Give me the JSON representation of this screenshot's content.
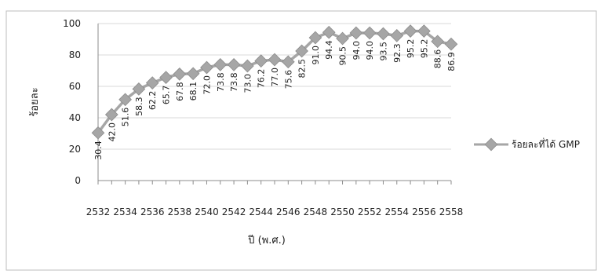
{
  "chart_data": {
    "type": "line",
    "title": "",
    "xlabel": "ปี (พ.ศ.)",
    "ylabel": "ร้อยละ",
    "x": [
      2532,
      2533,
      2534,
      2535,
      2536,
      2537,
      2538,
      2539,
      2540,
      2541,
      2542,
      2543,
      2544,
      2545,
      2546,
      2547,
      2548,
      2549,
      2550,
      2551,
      2552,
      2553,
      2554,
      2555,
      2556,
      2557,
      2558
    ],
    "x_tick_labels": [
      "2532",
      "2534",
      "2536",
      "2538",
      "2540",
      "2542",
      "2544",
      "2546",
      "2548",
      "2550",
      "2552",
      "2554",
      "2556",
      "2558"
    ],
    "y_ticks": [
      0,
      20,
      40,
      60,
      80,
      100
    ],
    "ylim": [
      0,
      100
    ],
    "grid": true,
    "legend_position": "right",
    "series": [
      {
        "name": "ร้อยละที่ได้ GMP",
        "color": "#a6a6a6",
        "values": [
          30.4,
          42.0,
          51.6,
          58.3,
          62.2,
          65.7,
          67.8,
          68.1,
          72.0,
          73.8,
          73.8,
          73.0,
          76.2,
          77.0,
          75.6,
          82.5,
          91.0,
          94.4,
          90.5,
          94.0,
          94.0,
          93.5,
          92.3,
          95.2,
          95.2,
          88.6,
          86.9
        ],
        "labels": [
          "30.4",
          "42.0",
          "51.6",
          "58.3",
          "62.2",
          "65.7",
          "67.8",
          "68.1",
          "72.0",
          "73.8",
          "73.8",
          "73.0",
          "76.2",
          "77.0",
          "75.6",
          "82.5",
          "91.0",
          "94.4",
          "90.5",
          "94.0",
          "94.0",
          "93.5",
          "92.3",
          "95.2",
          "95.2",
          "88.6",
          "86.9"
        ]
      }
    ]
  }
}
